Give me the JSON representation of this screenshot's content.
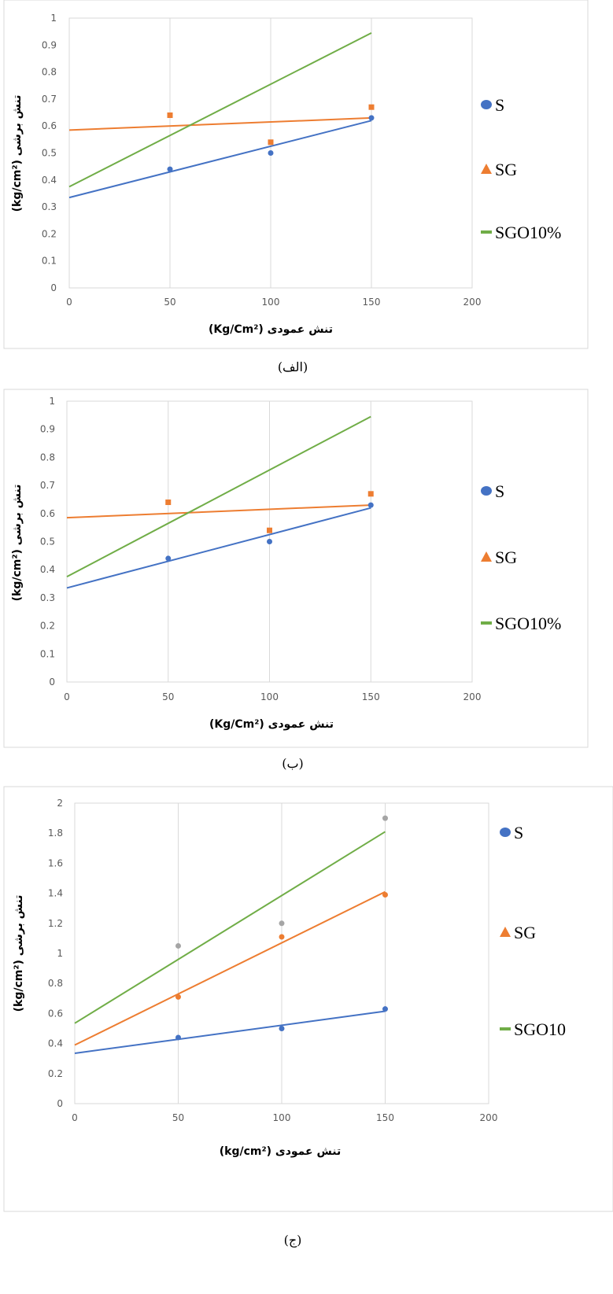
{
  "colors": {
    "S": "#4472C4",
    "SG": "#ED7D31",
    "SGO10": "#70AD47",
    "gray_points": "#A5A5A5",
    "grid": "#D9D9D9",
    "frame": "#D9D9D9"
  },
  "chart_data": [
    {
      "type": "scatter",
      "caption": "(الف)",
      "xlabel": "تنش عمودی (Kg/Cm²)",
      "ylabel": "تنش برشی (kg/cm²)",
      "xlim": [
        0,
        200
      ],
      "ylim": [
        0,
        1
      ],
      "xticks": [
        "0",
        "50",
        "100",
        "150",
        "200"
      ],
      "yticks": [
        "0",
        "0.1",
        "0.2",
        "0.3",
        "0.4",
        "0.5",
        "0.6",
        "0.7",
        "0.8",
        "0.9",
        "1"
      ],
      "grid": "vertical",
      "legend": [
        {
          "label": "S",
          "marker": "circle",
          "color": "#4472C4"
        },
        {
          "label": "SG",
          "marker": "triangle",
          "color": "#ED7D31"
        },
        {
          "label": "SGO10%",
          "marker": "line",
          "color": "#70AD47"
        }
      ],
      "series": [
        {
          "marker": "circle",
          "color": "#4472C4",
          "x": [
            50,
            100,
            150
          ],
          "y": [
            0.44,
            0.5,
            0.63
          ]
        },
        {
          "marker": "square",
          "color": "#ED7D31",
          "x": [
            50,
            100,
            150
          ],
          "y": [
            0.64,
            0.54,
            0.67
          ]
        }
      ],
      "trendlines": [
        {
          "color": "#4472C4",
          "from": [
            0,
            0.335
          ],
          "to": [
            150,
            0.62
          ]
        },
        {
          "color": "#ED7D31",
          "from": [
            0,
            0.585
          ],
          "to": [
            150,
            0.63
          ]
        },
        {
          "color": "#70AD47",
          "from": [
            0,
            0.375
          ],
          "to": [
            150,
            0.945
          ]
        }
      ]
    },
    {
      "type": "scatter",
      "caption": "(ب)",
      "xlabel": "تنش عمودی (Kg/Cm²)",
      "ylabel": "تنش برشی (kg/cm²)",
      "xlim": [
        0,
        200
      ],
      "ylim": [
        0,
        1
      ],
      "xticks": [
        "0",
        "50",
        "100",
        "150",
        "200"
      ],
      "yticks": [
        "0",
        "0.1",
        "0.2",
        "0.3",
        "0.4",
        "0.5",
        "0.6",
        "0.7",
        "0.8",
        "0.9",
        "1"
      ],
      "grid": "vertical",
      "legend": [
        {
          "label": "S",
          "marker": "circle",
          "color": "#4472C4"
        },
        {
          "label": "SG",
          "marker": "triangle",
          "color": "#ED7D31"
        },
        {
          "label": "SGO10%",
          "marker": "line",
          "color": "#70AD47"
        }
      ],
      "series": [
        {
          "marker": "circle",
          "color": "#4472C4",
          "x": [
            50,
            100,
            150
          ],
          "y": [
            0.44,
            0.5,
            0.63
          ]
        },
        {
          "marker": "square",
          "color": "#ED7D31",
          "x": [
            50,
            100,
            150
          ],
          "y": [
            0.64,
            0.54,
            0.67
          ]
        }
      ],
      "trendlines": [
        {
          "color": "#4472C4",
          "from": [
            0,
            0.335
          ],
          "to": [
            150,
            0.62
          ]
        },
        {
          "color": "#ED7D31",
          "from": [
            0,
            0.585
          ],
          "to": [
            150,
            0.63
          ]
        },
        {
          "color": "#70AD47",
          "from": [
            0,
            0.375
          ],
          "to": [
            150,
            0.945
          ]
        }
      ]
    },
    {
      "type": "scatter",
      "caption": "(ج)",
      "xlabel": "تنش عمودی (kg/cm²)",
      "ylabel": "تنش برشی (kg/cm²)",
      "xlim": [
        0,
        200
      ],
      "ylim": [
        0,
        2
      ],
      "xticks": [
        "0",
        "50",
        "100",
        "150",
        "200"
      ],
      "yticks": [
        "0",
        "0.2",
        "0.4",
        "0.6",
        "0.8",
        "1",
        "1.2",
        "1.4",
        "1.6",
        "1.8",
        "2"
      ],
      "grid": "vertical",
      "legend": [
        {
          "label": "S",
          "marker": "circle",
          "color": "#4472C4"
        },
        {
          "label": "SG",
          "marker": "triangle",
          "color": "#ED7D31"
        },
        {
          "label": "SGO10",
          "marker": "line",
          "color": "#70AD47"
        }
      ],
      "series": [
        {
          "marker": "circle",
          "color": "#4472C4",
          "x": [
            50,
            100,
            150
          ],
          "y": [
            0.44,
            0.5,
            0.63
          ]
        },
        {
          "marker": "circle",
          "color": "#ED7D31",
          "x": [
            50,
            100,
            150
          ],
          "y": [
            0.71,
            1.11,
            1.39
          ]
        },
        {
          "marker": "circle",
          "color": "#A5A5A5",
          "x": [
            50,
            100,
            150
          ],
          "y": [
            1.05,
            1.2,
            1.9
          ]
        }
      ],
      "trendlines": [
        {
          "color": "#4472C4",
          "from": [
            0,
            0.335
          ],
          "to": [
            150,
            0.615
          ]
        },
        {
          "color": "#ED7D31",
          "from": [
            0,
            0.39
          ],
          "to": [
            150,
            1.41
          ]
        },
        {
          "color": "#70AD47",
          "from": [
            0,
            0.535
          ],
          "to": [
            150,
            1.81
          ]
        }
      ]
    }
  ]
}
